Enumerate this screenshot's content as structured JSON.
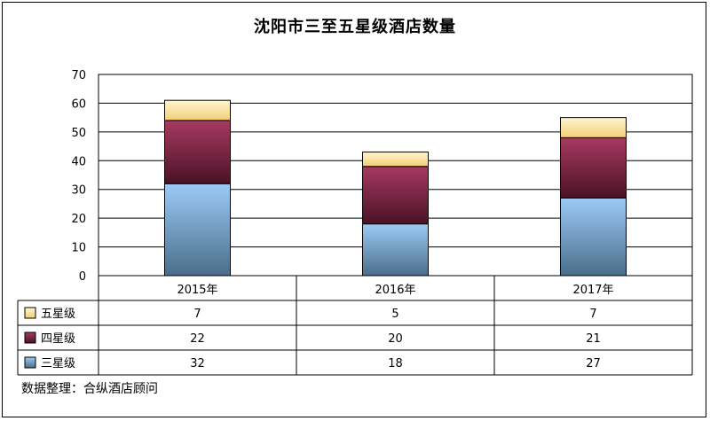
{
  "chart_data": {
    "type": "bar",
    "stacked": true,
    "title": "沈阳市三至五星级酒店数量",
    "categories": [
      "2015年",
      "2016年",
      "2017年"
    ],
    "series": [
      {
        "name": "三星级",
        "values": [
          32,
          18,
          27
        ],
        "color": "#7aaee4"
      },
      {
        "name": "四星级",
        "values": [
          22,
          20,
          21
        ],
        "color": "#8c2a4a"
      },
      {
        "name": "五星级",
        "values": [
          7,
          5,
          7
        ],
        "color": "#fde8a8"
      }
    ],
    "yticks": [
      0,
      10,
      20,
      30,
      40,
      50,
      60,
      70
    ],
    "ylim": [
      0,
      70
    ],
    "grid": true,
    "legend": "data-table"
  },
  "source_note": "数据整理：合纵酒店顾问"
}
